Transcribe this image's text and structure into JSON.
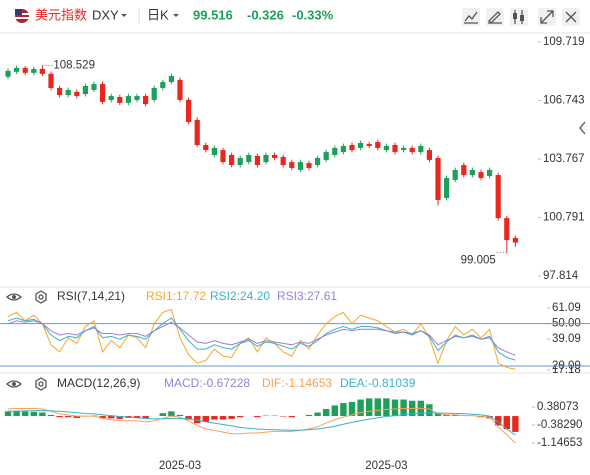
{
  "header": {
    "name": "美元指数",
    "symbol": "DXY",
    "period": "日K",
    "price": 99.516,
    "change": -0.326,
    "change_pct": "-0.33%"
  },
  "chart_data": [
    {
      "type": "candlestick",
      "up_color": "#1ea05b",
      "down_color": "#e8271f",
      "ylim": [
        97.814,
        109.719
      ],
      "yticks": [
        109.719,
        106.743,
        103.767,
        100.791,
        97.814
      ],
      "open": [
        107.95,
        108.2,
        108.4,
        108.15,
        108.35,
        108.1,
        107.38,
        107.02,
        107.18,
        107.07,
        107.28,
        107.58,
        106.77,
        106.92,
        106.62,
        106.77,
        106.97,
        106.77,
        107.38,
        107.68,
        107.79,
        106.77,
        105.75,
        104.48,
        103.97,
        104.22,
        103.97,
        103.46,
        103.61,
        103.92,
        103.61,
        103.97,
        103.87,
        103.61,
        103.21,
        103.56,
        103.46,
        103.72,
        103.97,
        104.12,
        104.48,
        104.33,
        104.53,
        104.63,
        104.22,
        104.48,
        104.22,
        104.33,
        104.12,
        104.22,
        103.82,
        101.78,
        102.7,
        103.46,
        102.95,
        103.1,
        102.9,
        102.95,
        100.76,
        99.75
      ],
      "high": [
        108.37,
        108.52,
        108.5,
        108.47,
        108.529,
        108.22,
        107.5,
        107.4,
        107.3,
        107.6,
        107.7,
        107.7,
        107.09,
        107.04,
        107.09,
        107.09,
        107.09,
        107.5,
        107.8,
        108.11,
        107.91,
        106.89,
        105.87,
        104.6,
        104.45,
        104.34,
        104.09,
        103.94,
        104.09,
        104.04,
        104.09,
        104.09,
        103.99,
        103.73,
        103.73,
        103.68,
        103.94,
        104.24,
        104.45,
        104.55,
        104.6,
        104.7,
        104.65,
        104.75,
        104.55,
        104.6,
        104.45,
        104.45,
        104.55,
        104.34,
        103.94,
        102.92,
        103.33,
        103.58,
        103.33,
        103.22,
        103.33,
        103.07,
        100.88,
        99.87
      ],
      "low": [
        107.83,
        108.08,
        108.03,
        108.03,
        107.98,
        107.26,
        106.9,
        106.9,
        106.85,
        106.95,
        107.16,
        106.55,
        106.65,
        106.5,
        106.5,
        106.65,
        106.44,
        106.65,
        107.26,
        107.56,
        106.65,
        105.53,
        104.36,
        104.1,
        103.85,
        103.49,
        103.34,
        103.34,
        103.49,
        103.34,
        103.49,
        103.7,
        103.34,
        103.19,
        103.09,
        103.19,
        103.34,
        103.6,
        103.85,
        104.0,
        104.1,
        104.21,
        104.31,
        104.21,
        104.1,
        104.0,
        104.1,
        104.0,
        104.0,
        103.6,
        101.4,
        101.66,
        102.58,
        102.83,
        102.83,
        102.68,
        102.78,
        100.64,
        99.005,
        99.3
      ],
      "close": [
        108.25,
        108.4,
        108.15,
        108.35,
        108.1,
        107.38,
        107.02,
        107.28,
        106.97,
        107.48,
        107.58,
        106.67,
        106.97,
        106.62,
        106.97,
        106.97,
        106.56,
        107.38,
        107.68,
        107.99,
        106.77,
        105.65,
        104.48,
        104.22,
        104.33,
        103.61,
        103.46,
        103.82,
        103.97,
        103.46,
        103.97,
        103.82,
        103.46,
        103.31,
        103.61,
        103.31,
        103.82,
        104.12,
        104.33,
        104.43,
        104.22,
        104.58,
        104.43,
        104.33,
        104.43,
        104.12,
        104.33,
        104.12,
        104.43,
        103.72,
        101.68,
        102.8,
        103.21,
        102.95,
        103.21,
        102.8,
        103.21,
        100.76,
        99.64,
        99.516
      ]
    },
    {
      "type": "line",
      "title": "RSI(7,14,21)",
      "ylim": [
        17.18,
        61.09
      ],
      "yticks": [
        61.09,
        {
          "value": 50,
          "label": "50.00"
        },
        39.09,
        17.18,
        {
          "value": 20,
          "label": "20.00"
        }
      ],
      "hlines": [
        50,
        20
      ],
      "hline_color": "#5b9bd5",
      "series": [
        {
          "name": "RSI1:17.72",
          "color": "#f5a623",
          "values": [
            55,
            58,
            52,
            56,
            50,
            35,
            30,
            40,
            36,
            48,
            52,
            30,
            38,
            33,
            42,
            40,
            33,
            50,
            58,
            60,
            40,
            28,
            22,
            24,
            32,
            27,
            26,
            36,
            40,
            30,
            40,
            36,
            30,
            27,
            38,
            32,
            42,
            50,
            55,
            58,
            50,
            56,
            54,
            52,
            48,
            44,
            46,
            42,
            50,
            40,
            22,
            38,
            48,
            42,
            46,
            40,
            46,
            22,
            19,
            17.72
          ]
        },
        {
          "name": "RSI2:24.20",
          "color": "#38b2c8",
          "values": [
            52,
            54,
            52,
            53,
            50,
            42,
            38,
            41,
            40,
            45,
            48,
            40,
            41,
            39,
            42,
            41,
            39,
            45,
            50,
            54,
            46,
            38,
            32,
            32,
            35,
            33,
            32,
            36,
            38,
            34,
            37,
            36,
            34,
            32,
            36,
            34,
            38,
            43,
            46,
            48,
            46,
            48,
            48,
            47,
            45,
            43,
            44,
            42,
            45,
            41,
            31,
            37,
            42,
            40,
            42,
            39,
            41,
            30,
            26,
            24.2
          ]
        },
        {
          "name": "RSI3:27.61",
          "color": "#9b7fd8",
          "values": [
            50,
            52,
            51,
            52,
            50,
            45,
            42,
            43,
            42,
            45,
            47,
            43,
            43,
            42,
            43,
            43,
            41,
            45,
            48,
            51,
            47,
            42,
            37,
            36,
            38,
            36,
            35,
            37,
            39,
            36,
            38,
            37,
            36,
            35,
            37,
            36,
            39,
            42,
            44,
            46,
            45,
            46,
            46,
            46,
            45,
            44,
            44,
            43,
            45,
            42,
            35,
            38,
            41,
            40,
            41,
            39,
            40,
            33,
            30,
            27.61
          ]
        }
      ]
    },
    {
      "type": "bar",
      "title": "MACD(12,26,9)",
      "ylim": [
        -1.95,
        1.53
      ],
      "yticks": [
        0.38073,
        {
          "value": -0.3829,
          "label": "-0.38290"
        },
        -1.14653
      ],
      "categories": [
        null,
        null,
        null,
        null,
        null,
        null,
        null,
        null,
        null,
        null,
        null,
        null,
        null,
        null,
        null,
        null,
        null,
        null,
        null,
        null,
        "2025-03",
        null,
        null,
        null,
        null,
        null,
        null,
        null,
        null,
        null,
        null,
        null,
        null,
        null,
        null,
        null,
        null,
        null,
        null,
        null,
        null,
        null,
        null,
        null,
        "2025-03",
        null,
        null,
        null,
        null,
        null,
        null,
        null,
        null,
        null,
        null,
        null,
        null,
        null,
        null,
        null
      ],
      "series": [
        {
          "name": "MACD:-0.67228",
          "color": "#9b7fd8",
          "up_color": "#1ea05b",
          "down_color": "#e8271f",
          "type": "bar",
          "values": [
            0.2,
            0.22,
            0.2,
            0.18,
            0.15,
            0.05,
            -0.05,
            -0.05,
            -0.08,
            -0.02,
            0.02,
            -0.1,
            -0.1,
            -0.12,
            -0.08,
            -0.06,
            -0.1,
            0,
            0.12,
            0.2,
            0.05,
            -0.15,
            -0.3,
            -0.25,
            -0.15,
            -0.15,
            -0.12,
            -0.05,
            0,
            -0.05,
            0.02,
            0.02,
            -0.02,
            -0.05,
            0,
            0.05,
            0.15,
            0.3,
            0.45,
            0.55,
            0.6,
            0.7,
            0.75,
            0.75,
            0.75,
            0.7,
            0.7,
            0.65,
            0.65,
            0.5,
            0.1,
            0.05,
            0.05,
            0,
            0.02,
            -0.05,
            -0.1,
            -0.4,
            -0.55,
            -0.67228
          ]
        },
        {
          "name": "DIF:-1.14653",
          "color": "#f5a05a",
          "type": "line",
          "values": [
            0.3,
            0.32,
            0.32,
            0.32,
            0.3,
            0.2,
            0.1,
            0.05,
            0,
            0,
            0,
            -0.1,
            -0.15,
            -0.2,
            -0.2,
            -0.2,
            -0.25,
            -0.2,
            -0.1,
            0,
            -0.05,
            -0.2,
            -0.4,
            -0.55,
            -0.6,
            -0.68,
            -0.75,
            -0.75,
            -0.72,
            -0.72,
            -0.68,
            -0.65,
            -0.65,
            -0.65,
            -0.6,
            -0.55,
            -0.45,
            -0.3,
            -0.15,
            -0.05,
            0.05,
            0.15,
            0.2,
            0.25,
            0.28,
            0.3,
            0.32,
            0.32,
            0.33,
            0.3,
            0.1,
            0.05,
            0.05,
            0.02,
            0.02,
            -0.02,
            -0.05,
            -0.45,
            -0.8,
            -1.14653
          ]
        },
        {
          "name": "DEA:-0.81039",
          "color": "#38b2c8",
          "type": "line",
          "values": [
            0.2,
            0.21,
            0.22,
            0.23,
            0.23,
            0.22,
            0.2,
            0.17,
            0.14,
            0.11,
            0.09,
            0.05,
            0.02,
            -0.02,
            -0.05,
            -0.08,
            -0.1,
            -0.12,
            -0.12,
            -0.1,
            -0.1,
            -0.12,
            -0.18,
            -0.25,
            -0.3,
            -0.36,
            -0.42,
            -0.48,
            -0.52,
            -0.55,
            -0.57,
            -0.58,
            -0.59,
            -0.6,
            -0.6,
            -0.58,
            -0.55,
            -0.5,
            -0.43,
            -0.35,
            -0.27,
            -0.2,
            -0.13,
            -0.07,
            -0.02,
            0.02,
            0.06,
            0.09,
            0.12,
            0.14,
            0.13,
            0.12,
            0.11,
            0.1,
            0.08,
            0.05,
            0,
            -0.25,
            -0.55,
            -0.81039
          ]
        }
      ]
    }
  ]
}
